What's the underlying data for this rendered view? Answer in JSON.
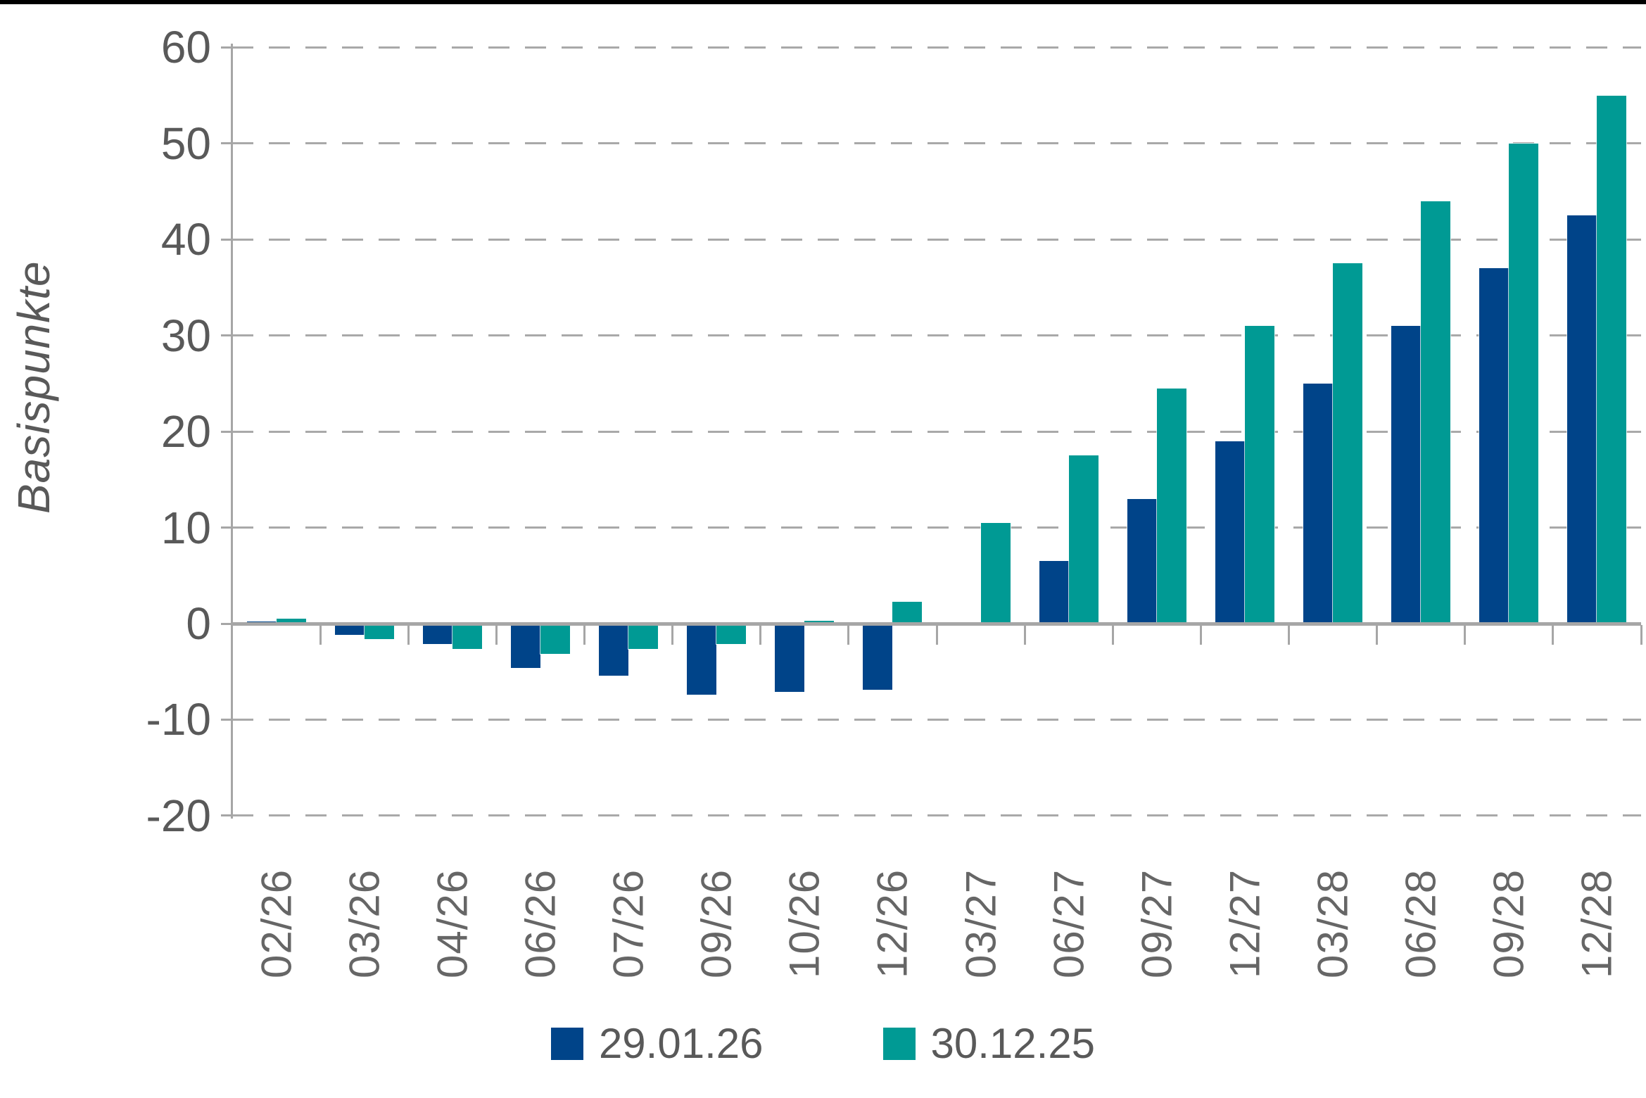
{
  "chart_data": {
    "type": "bar",
    "title": "",
    "ylabel": "Basispunkte",
    "xlabel": "",
    "categories": [
      "02/26",
      "03/26",
      "04/26",
      "06/26",
      "07/26",
      "09/26",
      "10/26",
      "12/26",
      "03/27",
      "06/27",
      "09/27",
      "12/27",
      "03/28",
      "06/28",
      "09/28",
      "12/28"
    ],
    "series": [
      {
        "name": "29.01.26",
        "color": "#004489",
        "values": [
          0.25,
          -1,
          -2,
          -4.5,
          -5.25,
          -7.25,
          -7,
          -6.75,
          0,
          6.5,
          13,
          19,
          25,
          31,
          37,
          42.5
        ]
      },
      {
        "name": "30.12.25",
        "color": "#009A94",
        "values": [
          0.5,
          -1.5,
          -2.5,
          -3,
          -2.5,
          -2,
          0.3,
          2.3,
          10.5,
          17.5,
          24.5,
          31,
          37.5,
          44,
          50,
          55
        ]
      }
    ],
    "ylim": [
      -20,
      60
    ],
    "yticks": [
      60,
      50,
      40,
      30,
      20,
      10,
      0,
      -10,
      -20
    ],
    "grid": "horizontal-dashed",
    "legend_position": "bottom-center"
  },
  "colors": {
    "axis": "#A6A6A6",
    "gridline": "#A9A9A9",
    "y_tick_label": "#595959",
    "x_tick_label": "#666666",
    "legend_label": "#595959",
    "top_strip": "#000000",
    "background": "#FFFFFF"
  }
}
